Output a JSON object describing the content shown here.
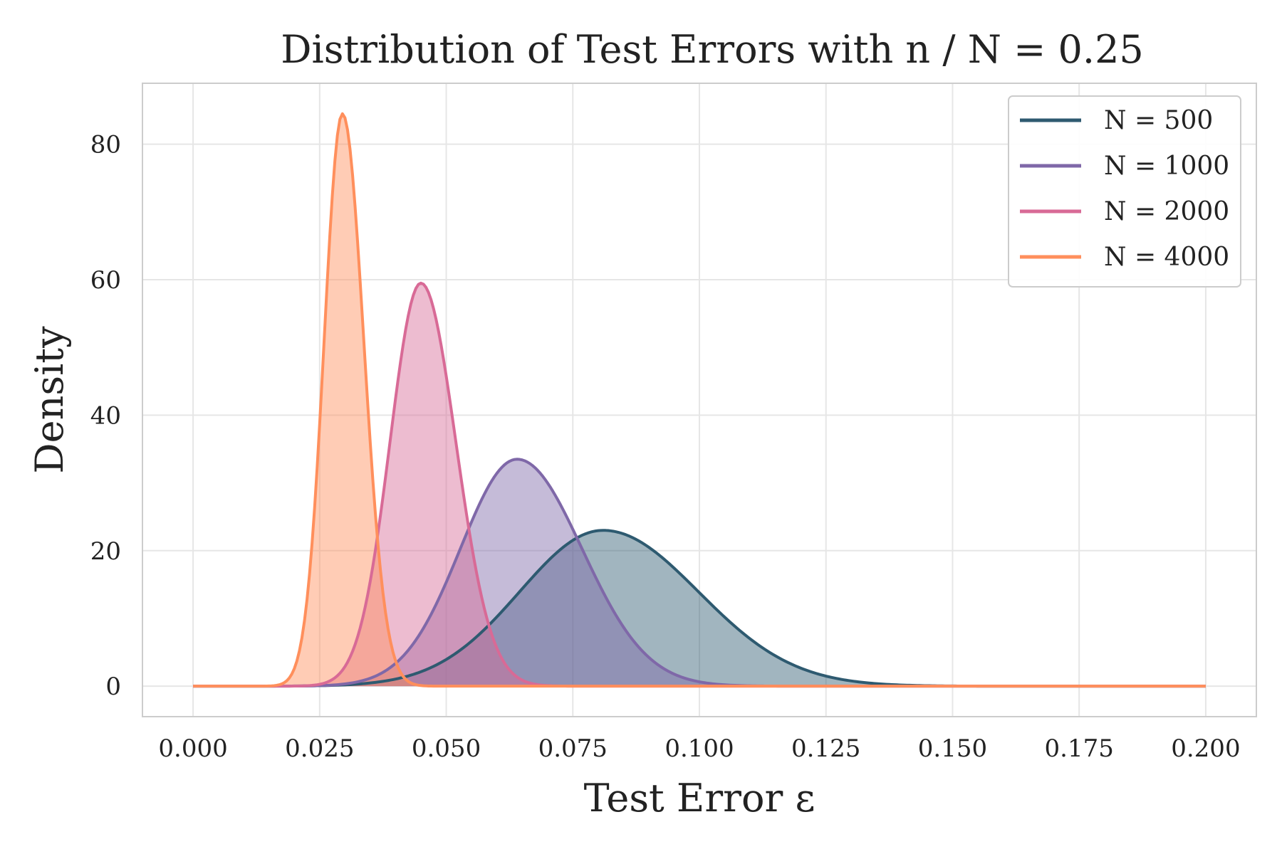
{
  "chart_data": {
    "type": "area",
    "title": "Distribution of Test Errors with n / N = 0.25",
    "xlabel": "Test Error ε",
    "ylabel": "Density",
    "xlim": [
      -0.01,
      0.21
    ],
    "ylim": [
      -4.5,
      89
    ],
    "xticks": [
      "0.000",
      "0.025",
      "0.050",
      "0.075",
      "0.100",
      "0.125",
      "0.150",
      "0.175",
      "0.200"
    ],
    "yticks": [
      "0",
      "20",
      "40",
      "60",
      "80"
    ],
    "grid": true,
    "legend": "top-right",
    "x_range": [
      0.0,
      0.2
    ],
    "series": [
      {
        "name": "N = 500",
        "color": "#2e5a70",
        "mean": 0.081,
        "sd_left": 0.0165,
        "sd_right": 0.0188,
        "peak": 23.0
      },
      {
        "name": "N = 1000",
        "color": "#7f68a8",
        "mean": 0.064,
        "sd_left": 0.0112,
        "sd_right": 0.0128,
        "peak": 33.5
      },
      {
        "name": "N = 2000",
        "color": "#d86a96",
        "mean": 0.045,
        "sd_left": 0.0061,
        "sd_right": 0.0069,
        "peak": 59.5
      },
      {
        "name": "N = 4000",
        "color": "#ff8f5c",
        "mean": 0.0295,
        "sd_left": 0.0036,
        "sd_right": 0.0042,
        "peak": 84.5
      }
    ]
  }
}
